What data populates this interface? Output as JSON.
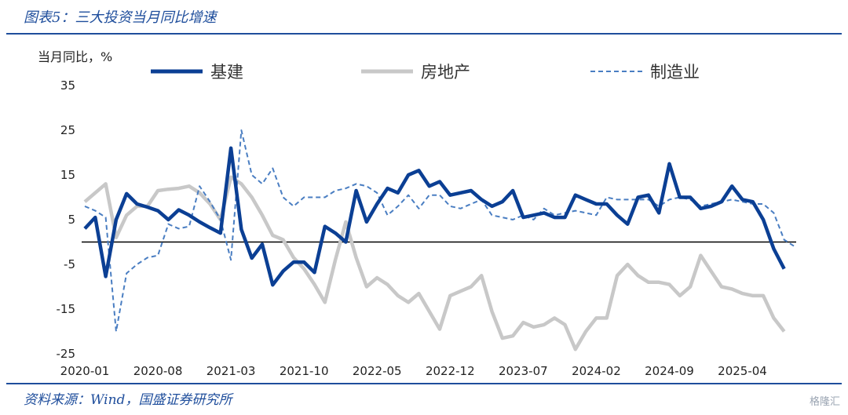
{
  "title": "图表5：三大投资当月同比增速",
  "source": "资料来源：Wind，国盛证券研究所",
  "watermark": "格隆汇",
  "chart_data": {
    "type": "line",
    "ylabel": "当月同比，%",
    "ylim": [
      -25,
      35
    ],
    "yticks": [
      35,
      25,
      15,
      5,
      -5,
      -15,
      -25
    ],
    "ytick_labels": [
      "35",
      "25",
      "15",
      "5",
      "-5",
      "-15",
      "-25"
    ],
    "x_labels": [
      "2020-01",
      "2020-08",
      "2021-03",
      "2021-10",
      "2022-05",
      "2022-12",
      "2023-07",
      "2024-02",
      "2024-09",
      "2025-04"
    ],
    "x_start": "2020-01",
    "grid": false,
    "legend_position": "top",
    "series": [
      {
        "name": "基建",
        "color": "#0b3f94",
        "style": "solid-thick",
        "start_index": 0,
        "values": [
          3,
          5.5,
          -7.7,
          5,
          10.8,
          8.5,
          7.8,
          7,
          5,
          7.2,
          6,
          4.5,
          3.2,
          2,
          21,
          2.8,
          -3.6,
          -0.5,
          -9.6,
          -6.5,
          -4.5,
          -4.5,
          -6.8,
          3.5,
          2,
          0,
          11.5,
          4.5,
          8.5,
          12,
          11,
          15,
          16,
          12.5,
          13.5,
          10.5,
          11,
          11.5,
          9.5,
          8,
          9,
          11.5,
          5.5,
          6,
          6.5,
          5.5,
          5.5,
          10.5,
          9.5,
          8.5,
          8.5,
          6,
          4,
          10,
          10.5,
          6.5,
          17.5,
          10,
          10,
          7.5,
          8,
          9,
          12.5,
          9.5,
          9,
          5,
          -1.5,
          -6
        ]
      },
      {
        "name": "房地产",
        "color": "#c8c8c8",
        "style": "solid-thick",
        "start_index": 0,
        "values": [
          9,
          11,
          13,
          1,
          6,
          8,
          8,
          11.5,
          11.8,
          12,
          12.5,
          11,
          8.5,
          5,
          14.5,
          13,
          10,
          6,
          1.5,
          0.5,
          -3.5,
          -6,
          -9.5,
          -13.5,
          -4,
          4.5,
          -3.5,
          -10,
          -8,
          -9.5,
          -12,
          -13.5,
          -11.5,
          -15.5,
          -19.5,
          -12,
          -11,
          -10,
          -7.5,
          -15.5,
          -21.5,
          -21,
          -18,
          -19,
          -18.5,
          -17,
          -18.5,
          -24,
          -20,
          -17,
          -17,
          -7.5,
          -5,
          -7.5,
          -9,
          -9,
          -9.5,
          -12,
          -10,
          -3,
          -6.5,
          -10,
          -10.5,
          -11.5,
          -12,
          -12,
          -17,
          -20
        ]
      },
      {
        "name": "制造业",
        "color": "#4a7ec2",
        "style": "dashed",
        "start_index": 0,
        "values": [
          8,
          7,
          5.5,
          -20,
          -7,
          -5,
          -3.5,
          -3,
          4,
          3,
          3.5,
          12.5,
          9,
          5,
          -4,
          25,
          15,
          13,
          16.5,
          10,
          8,
          10,
          10,
          10,
          11.5,
          12,
          13,
          12.5,
          11,
          6,
          8,
          10.5,
          7.5,
          10.5,
          10.5,
          8,
          7.5,
          8.5,
          9.5,
          6,
          5.5,
          5,
          6,
          5,
          7.5,
          6,
          6.5,
          7,
          6.5,
          6,
          10,
          9.5,
          9.5,
          9.5,
          9.5,
          8,
          9.5,
          10,
          9.5,
          8,
          8.5,
          9,
          9.5,
          9,
          8.5,
          8.5,
          6.5,
          0.5,
          -1
        ]
      }
    ]
  }
}
